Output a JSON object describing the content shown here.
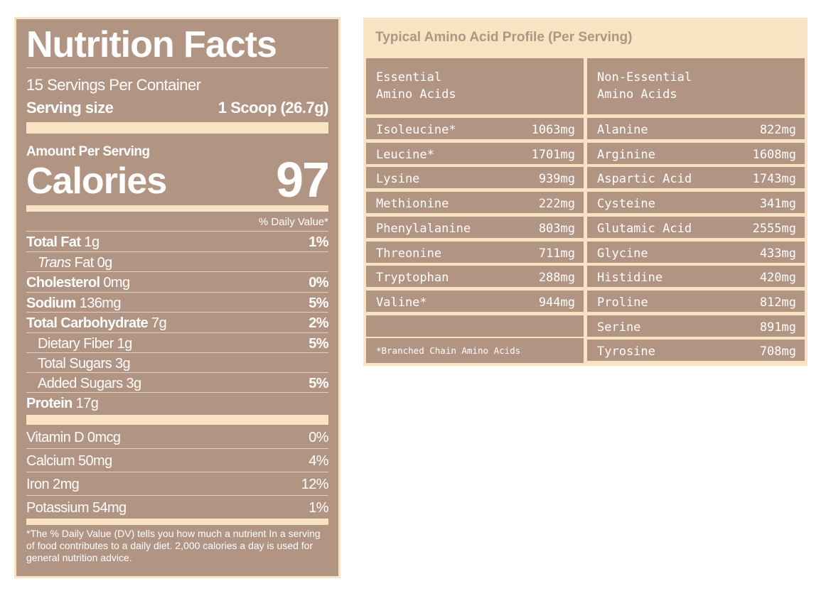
{
  "nutrition": {
    "title": "Nutrition Facts",
    "servings_per_container": "15 Servings Per Container",
    "serving_size_label": "Serving size",
    "serving_size_value": "1 Scoop (26.7g)",
    "amount_per_serving": "Amount Per Serving",
    "calories_label": "Calories",
    "calories_value": "97",
    "daily_value_header": "% Daily Value*",
    "nutrients": [
      {
        "name": "Total Fat",
        "amount": "1g",
        "dv": "1%"
      },
      {
        "name": "Trans",
        "amount": "Fat 0g",
        "dv": ""
      },
      {
        "name": "Cholesterol",
        "amount": "0mg",
        "dv": "0%"
      },
      {
        "name": "Sodium",
        "amount": "136mg",
        "dv": "5%"
      },
      {
        "name": "Total Carbohydrate",
        "amount": "7g",
        "dv": "2%"
      },
      {
        "name": "Dietary Fiber",
        "amount": "1g",
        "dv": "5%"
      },
      {
        "name": "Total Sugars",
        "amount": "3g",
        "dv": ""
      },
      {
        "name": "Added Sugars",
        "amount": "3g",
        "dv": "5%"
      },
      {
        "name": "Protein",
        "amount": "17g",
        "dv": ""
      }
    ],
    "vitamins": [
      {
        "name": "Vitamin D",
        "amount": "0mcg",
        "dv": "0%"
      },
      {
        "name": "Calcium",
        "amount": "50mg",
        "dv": "4%"
      },
      {
        "name": "Iron",
        "amount": "2mg",
        "dv": "12%"
      },
      {
        "name": "Potassium",
        "amount": "54mg",
        "dv": "1%"
      }
    ],
    "footnote": "*The % Daily Value (DV) tells you how much a nutrient In a serving of food contributes to a daily diet. 2,000 calories a day is used for general nutrition advice."
  },
  "amino": {
    "title": "Typical Amino Acid Profile (Per Serving)",
    "essential_header": "Essential\nAmino Acids",
    "nonessential_header": "Non-Essential\nAmino Acids",
    "essential": [
      {
        "name": "Isoleucine*",
        "value": "1063mg"
      },
      {
        "name": "Leucine*",
        "value": "1701mg"
      },
      {
        "name": "Lysine",
        "value": "939mg"
      },
      {
        "name": "Methionine",
        "value": "222mg"
      },
      {
        "name": "Phenylalanine",
        "value": "803mg"
      },
      {
        "name": "Threonine",
        "value": "711mg"
      },
      {
        "name": "Tryptophan",
        "value": "288mg"
      },
      {
        "name": "Valine*",
        "value": "944mg"
      }
    ],
    "nonessential": [
      {
        "name": "Alanine",
        "value": "822mg"
      },
      {
        "name": "Arginine",
        "value": "1608mg"
      },
      {
        "name": "Aspartic Acid",
        "value": "1743mg"
      },
      {
        "name": "Cysteine",
        "value": "341mg"
      },
      {
        "name": "Glutamic Acid",
        "value": "2555mg"
      },
      {
        "name": "Glycine",
        "value": "433mg"
      },
      {
        "name": "Histidine",
        "value": "420mg"
      },
      {
        "name": "Proline",
        "value": "812mg"
      },
      {
        "name": "Serine",
        "value": "891mg"
      },
      {
        "name": "Tyrosine",
        "value": "708mg"
      }
    ],
    "footnote": "*Branched Chain Amino Acids"
  },
  "colors": {
    "panel": "#b29483",
    "cream": "#f8e3c2",
    "text": "#ffffff"
  }
}
